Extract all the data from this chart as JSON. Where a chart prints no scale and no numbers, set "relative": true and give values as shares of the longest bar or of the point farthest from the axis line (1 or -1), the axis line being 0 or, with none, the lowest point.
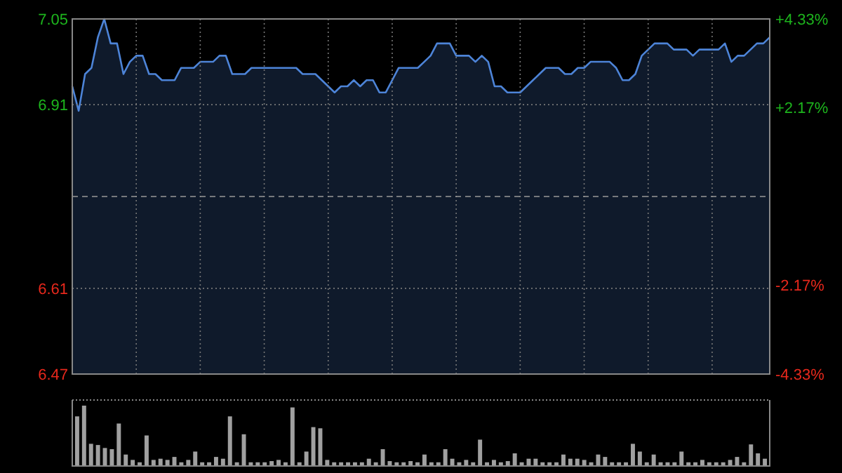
{
  "chart_data": [
    {
      "type": "area",
      "categories": [
        null,
        null,
        null,
        null,
        null,
        null,
        null,
        null,
        null,
        null,
        null,
        null,
        null,
        null,
        null,
        null,
        null,
        null,
        null,
        null,
        null,
        null,
        null,
        null,
        null,
        null,
        null,
        null,
        null,
        null,
        null,
        null,
        null,
        null,
        null,
        null,
        null,
        null,
        null,
        null,
        null,
        null,
        null,
        null,
        null,
        null,
        null,
        null,
        null,
        null,
        null,
        null,
        null,
        null,
        null,
        null,
        null,
        null,
        null,
        null,
        null,
        null,
        null,
        null,
        null,
        null,
        null,
        null,
        null,
        null,
        null,
        null,
        null,
        null,
        null,
        null,
        null,
        null,
        null,
        null,
        null,
        null,
        null,
        null,
        null,
        null,
        null,
        null,
        null,
        null,
        null,
        null,
        null,
        null,
        null,
        null,
        null,
        null,
        null,
        null,
        null,
        null,
        null,
        null,
        null,
        null,
        null,
        null,
        null,
        null
      ],
      "series": [
        {
          "color": "#4d84d8",
          "values": [
            6.94,
            6.9,
            6.96,
            6.97,
            7.02,
            7.05,
            7.01,
            7.01,
            6.96,
            6.98,
            6.99,
            6.99,
            6.96,
            6.96,
            6.95,
            6.95,
            6.95,
            6.97,
            6.97,
            6.97,
            6.98,
            6.98,
            6.98,
            6.99,
            6.99,
            6.96,
            6.96,
            6.96,
            6.97,
            6.97,
            6.97,
            6.97,
            6.97,
            6.97,
            6.97,
            6.97,
            6.96,
            6.96,
            6.96,
            6.95,
            6.94,
            6.93,
            6.94,
            6.94,
            6.95,
            6.94,
            6.95,
            6.95,
            6.93,
            6.93,
            6.95,
            6.97,
            6.97,
            6.97,
            6.97,
            6.98,
            6.99,
            7.01,
            7.01,
            7.01,
            6.99,
            6.99,
            6.99,
            6.98,
            6.99,
            6.98,
            6.94,
            6.94,
            6.93,
            6.93,
            6.93,
            6.94,
            6.95,
            6.96,
            6.97,
            6.97,
            6.97,
            6.96,
            6.96,
            6.97,
            6.97,
            6.98,
            6.98,
            6.98,
            6.98,
            6.97,
            6.95,
            6.95,
            6.96,
            6.99,
            7.0,
            7.01,
            7.01,
            7.01,
            7.0,
            7.0,
            7.0,
            6.99,
            7.0,
            7.0,
            7.0,
            7.0,
            7.01,
            6.98,
            6.99,
            6.99,
            7.0,
            7.01,
            7.01,
            7.02
          ]
        }
      ],
      "ylim": [
        6.47,
        7.05
      ],
      "yticks": [
        7.05,
        6.91,
        6.61,
        6.47
      ],
      "y2lim": [
        -4.33,
        4.33
      ],
      "y2ticks": [
        {
          "value": 4.33,
          "label": "+4.33%"
        },
        {
          "value": 2.17,
          "label": "+2.17%"
        },
        {
          "value": -2.17,
          "label": "-2.17%"
        },
        {
          "value": -4.33,
          "label": "-4.33%"
        }
      ],
      "grid": true,
      "ref_lines": [
        {
          "axis": "y",
          "value": 6.76,
          "line_style": "dashed"
        }
      ]
    },
    {
      "type": "bar",
      "relative": true,
      "color": "#a0a0a0",
      "categories": [
        null,
        null,
        null,
        null,
        null,
        null,
        null,
        null,
        null,
        null,
        null,
        null,
        null,
        null,
        null,
        null,
        null,
        null,
        null,
        null,
        null,
        null,
        null,
        null,
        null,
        null,
        null,
        null,
        null,
        null,
        null,
        null,
        null,
        null,
        null,
        null,
        null,
        null,
        null,
        null,
        null,
        null,
        null,
        null,
        null,
        null,
        null,
        null,
        null,
        null,
        null,
        null,
        null,
        null,
        null,
        null,
        null,
        null,
        null,
        null,
        null,
        null,
        null,
        null,
        null,
        null,
        null,
        null,
        null,
        null,
        null,
        null,
        null,
        null,
        null,
        null,
        null,
        null,
        null,
        null,
        null,
        null,
        null,
        null,
        null,
        null,
        null,
        null,
        null,
        null,
        null,
        null,
        null,
        null,
        null,
        null,
        null,
        null,
        null,
        null
      ],
      "values": [
        0.82,
        1,
        0.36,
        0.34,
        0.29,
        0.27,
        0.7,
        0.18,
        0.09,
        0.05,
        0.5,
        0.09,
        0.11,
        0.09,
        0.14,
        0.05,
        0.09,
        0.23,
        0.05,
        0.05,
        0.14,
        0.11,
        0.82,
        0.05,
        0.52,
        0.05,
        0.05,
        0.05,
        0.07,
        0.09,
        0.05,
        0.97,
        0.05,
        0.23,
        0.64,
        0.62,
        0.09,
        0.05,
        0.05,
        0.05,
        0.05,
        0.05,
        0.11,
        0.05,
        0.27,
        0.07,
        0.05,
        0.05,
        0.07,
        0.05,
        0.18,
        0.05,
        0.05,
        0.27,
        0.11,
        0.05,
        0.09,
        0.05,
        0.43,
        0.05,
        0.09,
        0.05,
        0.07,
        0.2,
        0.05,
        0.11,
        0.11,
        0.05,
        0.05,
        0.05,
        0.18,
        0.11,
        0.11,
        0.09,
        0.05,
        0.18,
        0.14,
        0.05,
        0.05,
        0.05,
        0.36,
        0.23,
        0.05,
        0.18,
        0.05,
        0.05,
        0.05,
        0.23,
        0.05,
        0.05,
        0.09,
        0.05,
        0.05,
        0.05,
        0.09,
        0.14,
        0.05,
        0.35,
        0.2,
        0.11
      ]
    }
  ]
}
